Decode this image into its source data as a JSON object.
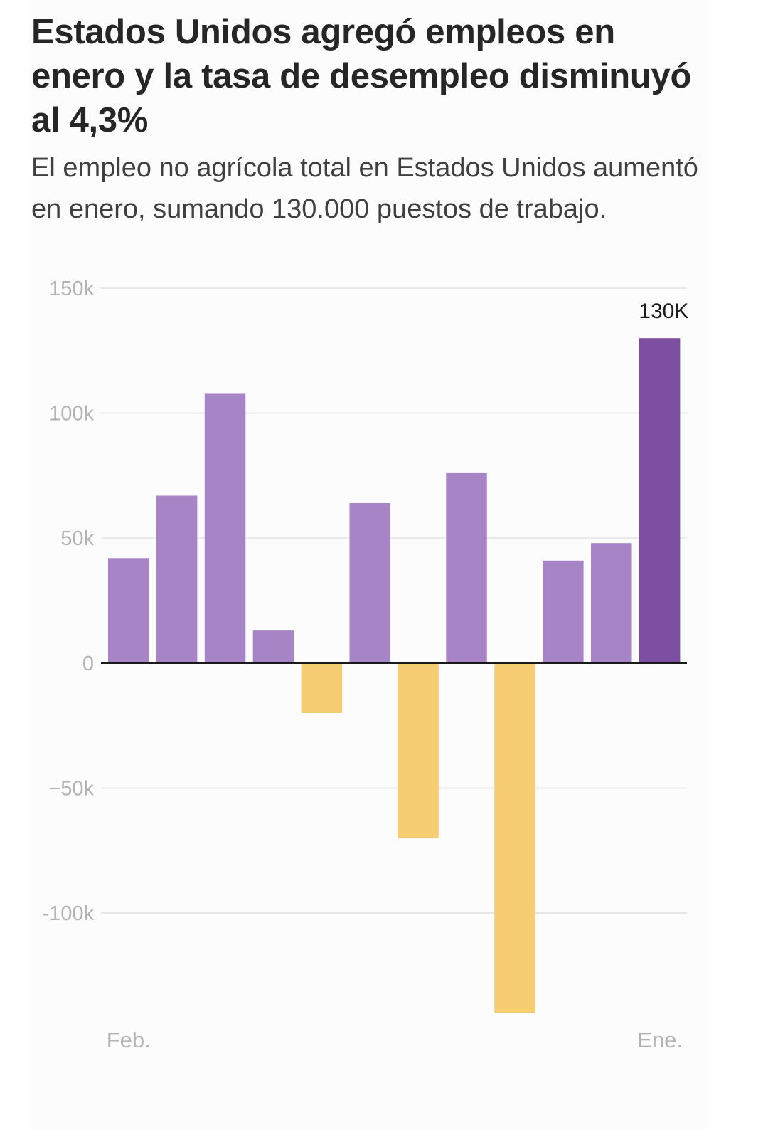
{
  "header": {
    "title": "Estados Unidos agregó empleos en enero y la tasa de desempleo disminuyó al 4,3%",
    "subtitle": "El empleo no agrícola total en Estados Unidos aumentó en enero, sumando 130.000 puestos de trabajo."
  },
  "colors": {
    "positive": "#a684c5",
    "negative": "#f7cd74",
    "highlight": "#7d4fa3",
    "grid": "#e8e8e8",
    "zero_line": "#1a1a1a",
    "tick_text": "#b3b3b3"
  },
  "chart_data": {
    "type": "bar",
    "title": "Estados Unidos agregó empleos en enero y la tasa de desempleo disminuyó al 4,3%",
    "subtitle": "El empleo no agrícola total en Estados Unidos aumentó en enero, sumando 130.000 puestos de trabajo.",
    "xlabel": "",
    "ylabel": "",
    "ylim": [
      -150000,
      150000
    ],
    "y_ticks": [
      {
        "value": 150000,
        "label": "150k"
      },
      {
        "value": 100000,
        "label": "100k"
      },
      {
        "value": 50000,
        "label": "50k"
      },
      {
        "value": 0,
        "label": "0"
      },
      {
        "value": -50000,
        "label": "−50k"
      },
      {
        "value": -100000,
        "label": "-100k"
      }
    ],
    "x_tick_labels": [
      "Feb.",
      "",
      "",
      "",
      "",
      "",
      "",
      "",
      "",
      "",
      "",
      "Ene."
    ],
    "values": [
      42000,
      67000,
      108000,
      13000,
      -20000,
      64000,
      -70000,
      76000,
      -140000,
      41000,
      48000,
      130000
    ],
    "highlight_index": 11,
    "data_labels": [
      {
        "index": 11,
        "text": "130K"
      }
    ],
    "grid": true,
    "legend": "none"
  }
}
